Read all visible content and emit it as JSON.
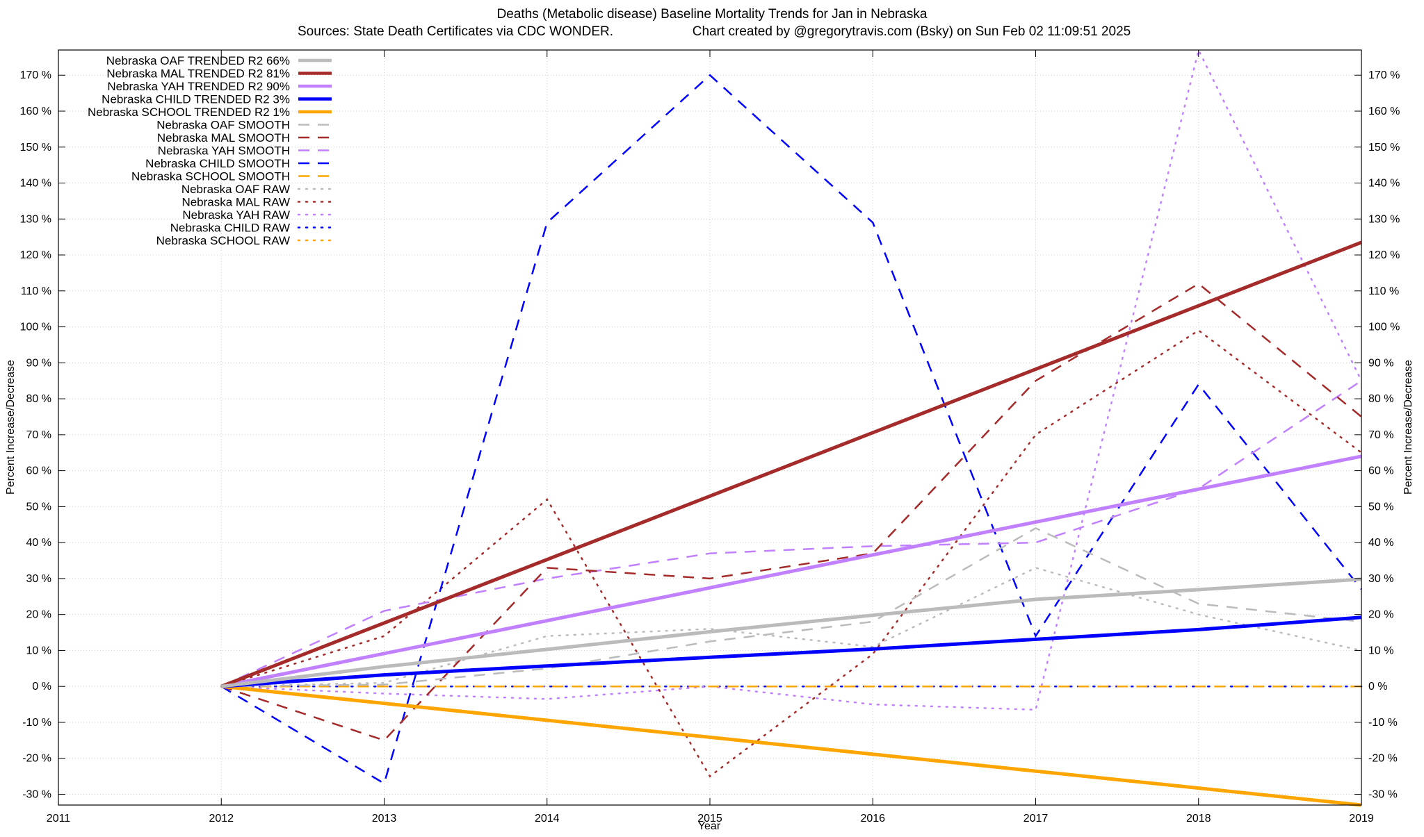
{
  "chart_data": {
    "type": "line",
    "title": "Deaths (Metabolic disease)  Baseline Mortality Trends for Jan in Nebraska",
    "subtitle_left": "Sources: State Death Certificates via CDC WONDER.",
    "subtitle_right": "Chart created by @gregorytravis.com (Bsky) on Sun Feb 02 11:09:51 2025",
    "xlabel": "Year",
    "ylabel": "Percent Increase/Decrease",
    "y2label": "Percent Increase/Decrease",
    "xlim": [
      2011,
      2019
    ],
    "ylim": [
      -33,
      177
    ],
    "x_ticks": [
      2011,
      2012,
      2013,
      2014,
      2015,
      2016,
      2017,
      2018,
      2019
    ],
    "x_tick_labels": [
      "2011",
      "2012",
      "2013",
      "2014",
      "2015",
      "2016",
      "2017",
      "2018",
      "2019"
    ],
    "y_ticks": [
      -30,
      -20,
      -10,
      0,
      10,
      20,
      30,
      40,
      50,
      60,
      70,
      80,
      90,
      100,
      110,
      120,
      130,
      140,
      150,
      160,
      170
    ],
    "y_tick_labels": [
      "-30 %",
      "-20 %",
      "-10 %",
      "0 %",
      "10 %",
      "20 %",
      "30 %",
      "40 %",
      "50 %",
      "60 %",
      "70 %",
      "80 %",
      "90 %",
      "100 %",
      "110 %",
      "120 %",
      "130 %",
      "140 %",
      "150 %",
      "160 %",
      "170 %"
    ],
    "grid": true,
    "legend_position": "top-left",
    "series": [
      {
        "name": "Nebraska OAF TRENDED R2  66%",
        "style": "solid",
        "color": "#bbbbbb",
        "x": [
          2012,
          2013,
          2014,
          2015,
          2016,
          2017,
          2018,
          2019
        ],
        "values": [
          0,
          5.5,
          10.3,
          15.2,
          19.8,
          24.2,
          26.9,
          29.8
        ]
      },
      {
        "name": "Nebraska MAL TRENDED R2  81%",
        "style": "solid",
        "color": "#a52a2a",
        "x": [
          2012,
          2019
        ],
        "values": [
          0,
          123.5
        ]
      },
      {
        "name": "Nebraska YAH TRENDED R2  90%",
        "style": "solid",
        "color": "#c080ff",
        "x": [
          2012,
          2019
        ],
        "values": [
          0,
          64
        ]
      },
      {
        "name": "Nebraska CHILD TRENDED R2   3%",
        "style": "solid",
        "color": "#0000ff",
        "x": [
          2012,
          2013,
          2014,
          2015,
          2016,
          2017,
          2018,
          2019
        ],
        "values": [
          0,
          3.2,
          5.7,
          8.1,
          10.4,
          13.1,
          15.8,
          19.2
        ]
      },
      {
        "name": "Nebraska SCHOOL TRENDED R2   1%",
        "style": "solid",
        "color": "#ffa500",
        "x": [
          2012,
          2019
        ],
        "values": [
          0,
          -33
        ]
      },
      {
        "name": "Nebraska OAF SMOOTH",
        "style": "dashed",
        "color": "#bbbbbb",
        "x": [
          2012,
          2013,
          2014,
          2015,
          2016,
          2017,
          2018,
          2019
        ],
        "values": [
          0,
          0.5,
          5,
          12.5,
          18,
          44,
          23,
          18
        ]
      },
      {
        "name": "Nebraska MAL SMOOTH",
        "style": "dashed",
        "color": "#a52a2a",
        "x": [
          2012,
          2013,
          2014,
          2015,
          2016,
          2017,
          2018,
          2019
        ],
        "values": [
          0,
          -15,
          33,
          30,
          37,
          85,
          112,
          75
        ]
      },
      {
        "name": "Nebraska YAH SMOOTH",
        "style": "dashed",
        "color": "#c080ff",
        "x": [
          2012,
          2013,
          2014,
          2015,
          2016,
          2017,
          2018,
          2019
        ],
        "values": [
          0,
          21,
          30,
          37,
          39,
          40,
          55,
          85
        ]
      },
      {
        "name": "Nebraska CHILD SMOOTH",
        "style": "dashed",
        "color": "#0000ff",
        "x": [
          2012,
          2013,
          2014,
          2015,
          2016,
          2017,
          2018,
          2019
        ],
        "values": [
          0,
          -27,
          129,
          170,
          129,
          14,
          84,
          27
        ]
      },
      {
        "name": "Nebraska SCHOOL SMOOTH",
        "style": "dashed",
        "color": "#ffa500",
        "x": [
          2012,
          2019
        ],
        "values": [
          0,
          0
        ]
      },
      {
        "name": "Nebraska OAF RAW",
        "style": "dotted",
        "color": "#bbbbbb",
        "x": [
          2012,
          2013,
          2014,
          2015,
          2016,
          2017,
          2018,
          2019
        ],
        "values": [
          0,
          1,
          14,
          16,
          11,
          33,
          20,
          10
        ]
      },
      {
        "name": "Nebraska MAL RAW",
        "style": "dotted",
        "color": "#a52a2a",
        "x": [
          2012,
          2013,
          2014,
          2015,
          2016,
          2017,
          2018,
          2019
        ],
        "values": [
          0,
          14,
          52,
          -25,
          9,
          70,
          99,
          65
        ]
      },
      {
        "name": "Nebraska YAH RAW",
        "style": "dotted",
        "color": "#c080ff",
        "x": [
          2012,
          2013,
          2014,
          2015,
          2016,
          2017,
          2018,
          2019
        ],
        "values": [
          0,
          -2,
          -3.5,
          0,
          -5,
          -6.5,
          177,
          85
        ]
      },
      {
        "name": "Nebraska CHILD RAW",
        "style": "dotted",
        "color": "#0000ff",
        "x": [
          2012,
          2019
        ],
        "values": [
          0,
          0
        ]
      },
      {
        "name": "Nebraska SCHOOL RAW",
        "style": "dotted",
        "color": "#ffa500",
        "x": [
          2012,
          2019
        ],
        "values": [
          0,
          0
        ]
      }
    ]
  }
}
